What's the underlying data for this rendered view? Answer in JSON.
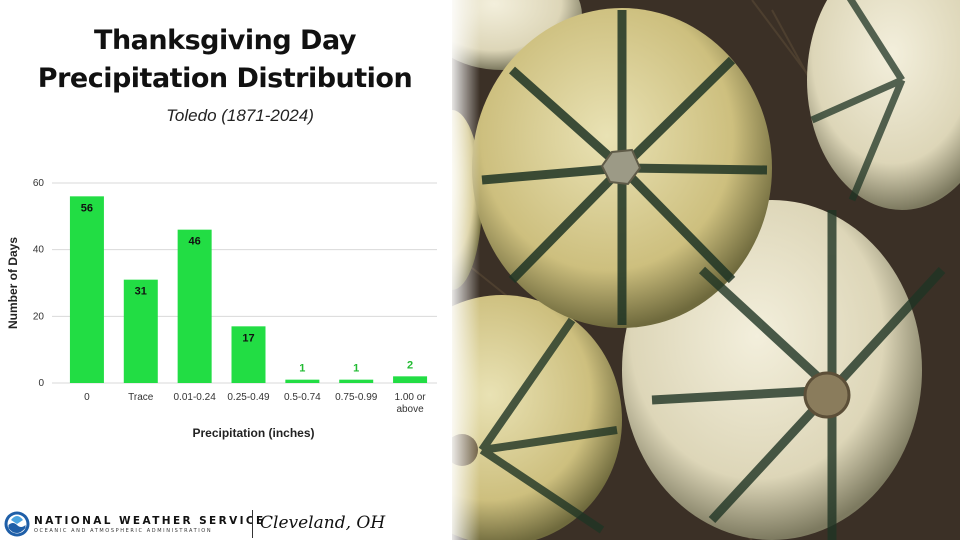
{
  "title_line1": "Thanksgiving Day",
  "title_line2": "Precipitation Distribution",
  "subtitle": "Toledo (1871-2024)",
  "footer": {
    "agency": "NATIONAL WEATHER SERVICE",
    "agency_sub": "OCEANIC AND ATMOSPHERIC ADMINISTRATION",
    "office": "Cleveland, OH"
  },
  "photo_subject": "pumpkins",
  "colors": {
    "bar": "#22dd44",
    "bar_label_outside": "#22bb33",
    "grid": "#d9d9d9"
  },
  "chart_data": {
    "type": "bar",
    "categories": [
      "0",
      "Trace",
      "0.01-0.24",
      "0.25-0.49",
      "0.5-0.74",
      "0.75-0.99",
      "1.00 or above"
    ],
    "category_lines": [
      [
        "0"
      ],
      [
        "Trace"
      ],
      [
        "0.01-0.24"
      ],
      [
        "0.25-0.49"
      ],
      [
        "0.5-0.74"
      ],
      [
        "0.75-0.99"
      ],
      [
        "1.00 or",
        "above"
      ]
    ],
    "values": [
      56,
      31,
      46,
      17,
      1,
      1,
      2
    ],
    "xlabel": "Precipitation (inches)",
    "ylabel": "Number of Days",
    "ylim": [
      0,
      60
    ],
    "yticks": [
      0,
      20,
      40,
      60
    ],
    "grid": true
  }
}
